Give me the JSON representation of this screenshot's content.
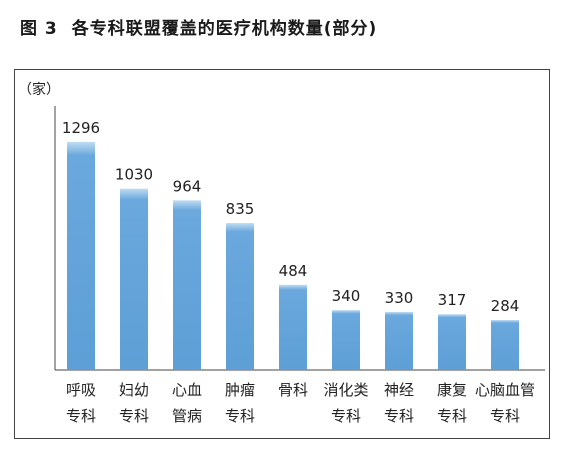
{
  "figure": {
    "label": "图 3",
    "title": "各专科联盟覆盖的医疗机构数量(部分)"
  },
  "chart_data": {
    "type": "bar",
    "unit_label": "（家）",
    "categories": [
      [
        "呼吸",
        "专科"
      ],
      [
        "妇幼",
        "专科"
      ],
      [
        "心血",
        "管病"
      ],
      [
        "肿瘤",
        "专科"
      ],
      [
        "骨科"
      ],
      [
        "消化类",
        "专科"
      ],
      [
        "神经",
        "专科"
      ],
      [
        "康复",
        "专科"
      ],
      [
        "心脑血管",
        "专科"
      ]
    ],
    "values": [
      1296,
      1030,
      964,
      835,
      484,
      340,
      330,
      317,
      284
    ],
    "data_labels": [
      "1296",
      "1030",
      "964",
      "835",
      "484",
      "340",
      "330",
      "317",
      "284"
    ],
    "ylim": [
      0,
      1500
    ],
    "grid": false,
    "colors": {
      "bar_top": "#bfdcf3",
      "bar_body": "#6aa8dd",
      "bar_bottom": "#5d9fd6",
      "axis": "#444444"
    }
  }
}
